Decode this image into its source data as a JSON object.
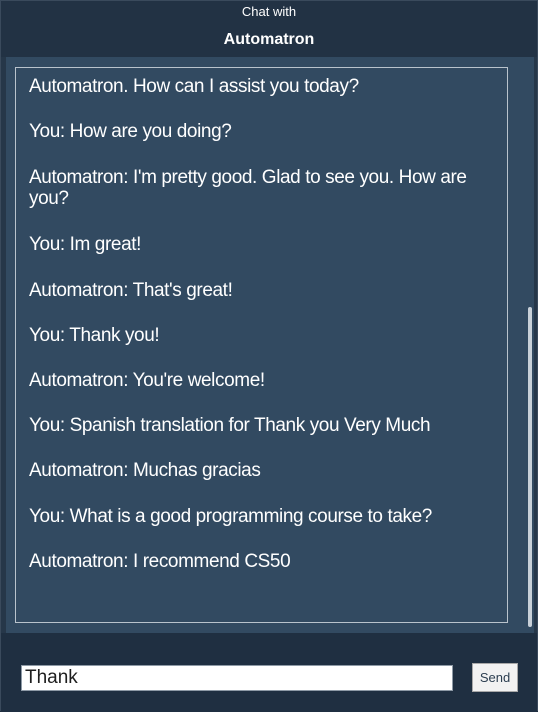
{
  "header": {
    "subtitle": "Chat with",
    "title": "Automatron"
  },
  "chat": {
    "messages": [
      {
        "text": "Automatron. How can I assist you today?"
      },
      {
        "text": "You: How are you doing?"
      },
      {
        "text": "Automatron: I'm pretty good. Glad to see you. How are you?"
      },
      {
        "text": "You: Im great!"
      },
      {
        "text": "Automatron: That's great!"
      },
      {
        "text": "You: Thank you!"
      },
      {
        "text": "Automatron: You're welcome!"
      },
      {
        "text": "You: Spanish translation for Thank you Very Much"
      },
      {
        "text": "Automatron: Muchas gracias"
      },
      {
        "text": "You: What is a good programming course to take?"
      },
      {
        "text": "Automatron: I recommend CS50"
      }
    ]
  },
  "composer": {
    "input_value": "Thank",
    "send_label": "Send"
  },
  "colors": {
    "background": "#263749",
    "chat_area": "#324a61",
    "text": "#ffffff"
  }
}
